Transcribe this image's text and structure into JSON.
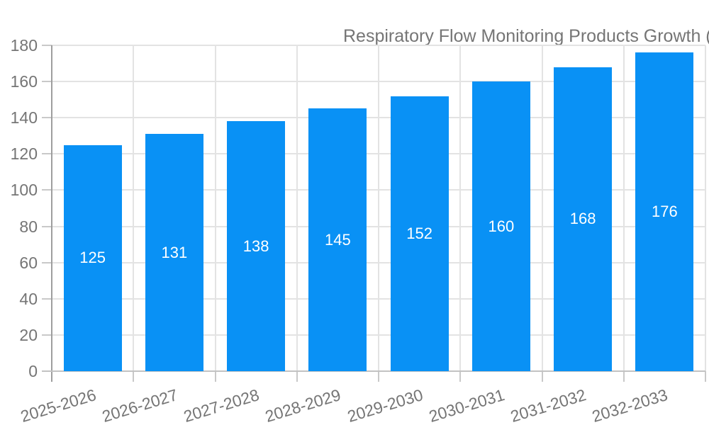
{
  "chart_data": {
    "type": "bar",
    "title": "Respiratory Flow Monitoring Products Growth (%)",
    "legend": {
      "position": "top",
      "label": "Respiratory Flow Monitoring Products Growth (%)"
    },
    "categories": [
      "2025-2026",
      "2026-2027",
      "2027-2028",
      "2028-2029",
      "2029-2030",
      "2030-2031",
      "2031-2032",
      "2032-2033"
    ],
    "values": [
      125,
      131,
      138,
      145,
      152,
      160,
      168,
      176
    ],
    "value_labels": [
      "125",
      "131",
      "138",
      "145",
      "152",
      "160",
      "168",
      "176"
    ],
    "xlabel": "",
    "ylabel": "",
    "ylim": [
      0,
      180
    ],
    "yticks": [
      0,
      20,
      40,
      60,
      80,
      100,
      120,
      140,
      160,
      180
    ],
    "grid": true,
    "x_label_rotation_deg": -17,
    "colors": {
      "bar": "#0991F5",
      "grid_line": "#e3e3e3",
      "axis_line": "#9e9e9e",
      "baseline": "#c2c2c2",
      "tick": "#c9c9c9",
      "axis_text": "#757575",
      "value_text": "#ffffff",
      "background": "#ffffff"
    }
  }
}
